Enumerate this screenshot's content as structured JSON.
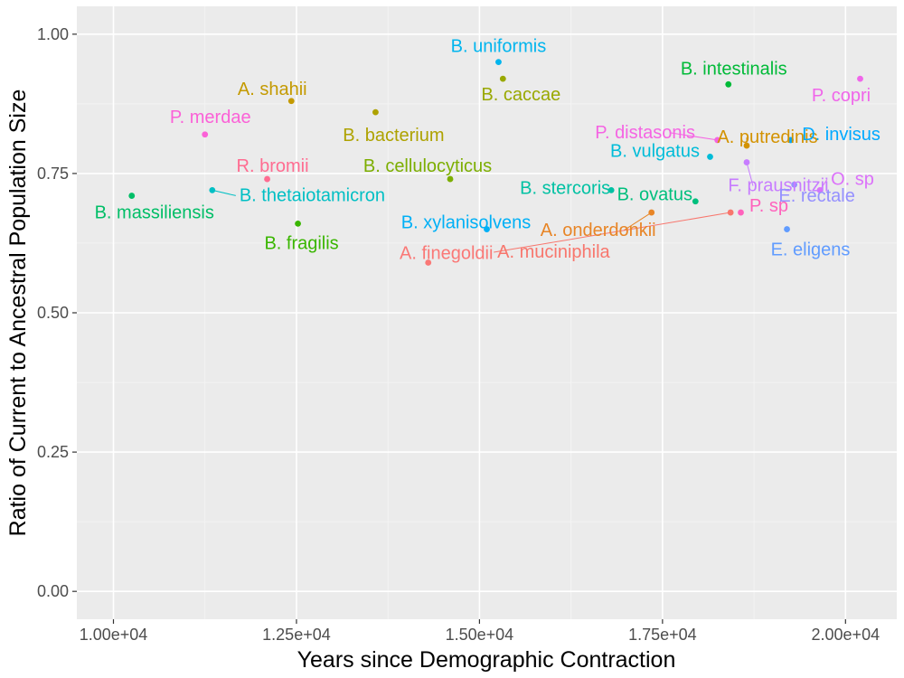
{
  "chart_data": {
    "type": "scatter",
    "xlabel": "Years since Demographic Contraction",
    "ylabel": "Ratio of Current to Ancestral Population Size",
    "xlim": [
      9500,
      20700
    ],
    "ylim": [
      -0.05,
      1.05
    ],
    "x_ticks": [
      10000,
      12500,
      15000,
      17500,
      20000
    ],
    "x_tick_labels": [
      "1.00e+04",
      "1.25e+04",
      "1.50e+04",
      "1.75e+04",
      "2.00e+04"
    ],
    "y_ticks": [
      0,
      0.25,
      0.5,
      0.75,
      1.0
    ],
    "y_tick_labels": [
      "0.00",
      "0.25",
      "0.50",
      "0.75",
      "1.00"
    ],
    "grid": true,
    "legend": "none",
    "points": [
      {
        "label": "B. uniformis",
        "x": 15260,
        "y": 0.95,
        "color": "#00B5EE"
      },
      {
        "label": "B. intestinalis",
        "x": 18400,
        "y": 0.91,
        "color": "#00BA38"
      },
      {
        "label": "P. copri",
        "x": 20200,
        "y": 0.92,
        "color": "#F066EA"
      },
      {
        "label": "A. shahii",
        "x": 12430,
        "y": 0.88,
        "color": "#C49A00"
      },
      {
        "label": "B. caccae",
        "x": 15320,
        "y": 0.92,
        "color": "#99A800"
      },
      {
        "label": "B. bacterium",
        "x": 13580,
        "y": 0.86,
        "color": "#AEA200"
      },
      {
        "label": "P. merdae",
        "x": 11250,
        "y": 0.82,
        "color": "#FB61D7"
      },
      {
        "label": "P. distasonis",
        "x": 18250,
        "y": 0.81,
        "color": "#F564E3"
      },
      {
        "label": "A. putredinis",
        "x": 18650,
        "y": 0.8,
        "color": "#D39200"
      },
      {
        "label": "B. vulgatus",
        "x": 18150,
        "y": 0.78,
        "color": "#00BCD8"
      },
      {
        "label": "D. invisus",
        "x": 19250,
        "y": 0.81,
        "color": "#00A9FF"
      },
      {
        "label": "R. bromii",
        "x": 12100,
        "y": 0.74,
        "color": "#FF6C91"
      },
      {
        "label": "B. cellulocyticus",
        "x": 14600,
        "y": 0.74,
        "color": "#7CAE00"
      },
      {
        "label": "F. prausnitzii",
        "x": 18650,
        "y": 0.77,
        "color": "#C77CFF"
      },
      {
        "label": "O. sp",
        "x": 19650,
        "y": 0.72,
        "color": "#DC71FA"
      },
      {
        "label": "B. stercoris",
        "x": 16800,
        "y": 0.72,
        "color": "#00C1A3"
      },
      {
        "label": "B. ovatus",
        "x": 17950,
        "y": 0.7,
        "color": "#00BF7D"
      },
      {
        "label": "B. massiliensis",
        "x": 10250,
        "y": 0.71,
        "color": "#00BE67"
      },
      {
        "label": "B. thetaiotamicron",
        "x": 11350,
        "y": 0.72,
        "color": "#00BFC4"
      },
      {
        "label": "P. sp",
        "x": 18570,
        "y": 0.68,
        "color": "#FF62BC"
      },
      {
        "label": "E. rectale",
        "x": 19300,
        "y": 0.73,
        "color": "#9590FF"
      },
      {
        "label": "A. onderdonkii",
        "x": 17350,
        "y": 0.68,
        "color": "#E88526"
      },
      {
        "label": "A. muciniphila",
        "x": 18430,
        "y": 0.68,
        "color": "#F8766D"
      },
      {
        "label": "B. xylanisolvens",
        "x": 15100,
        "y": 0.65,
        "color": "#00B0F6"
      },
      {
        "label": "B. fragilis",
        "x": 12520,
        "y": 0.66,
        "color": "#39B600"
      },
      {
        "label": "E. eligens",
        "x": 19200,
        "y": 0.65,
        "color": "#619CFF"
      },
      {
        "label": "A. finegoldii",
        "x": 14300,
        "y": 0.59,
        "color": "#FA7876"
      }
    ]
  }
}
